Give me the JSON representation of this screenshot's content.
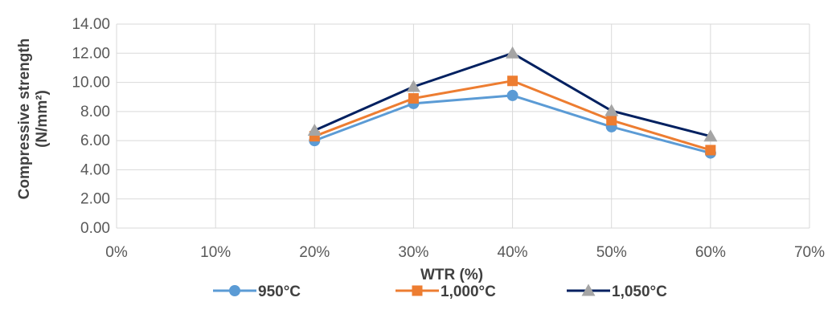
{
  "chart_data": {
    "type": "line",
    "title": "",
    "xlabel": "WTR (%)",
    "ylabel_line1": "Compressive strength",
    "ylabel_line2": "(N/mm²)",
    "x_ticks": [
      "0%",
      "10%",
      "20%",
      "30%",
      "40%",
      "50%",
      "60%",
      "70%"
    ],
    "x_range": [
      0,
      70
    ],
    "y_ticks": [
      "0.00",
      "2.00",
      "4.00",
      "6.00",
      "8.00",
      "10.00",
      "12.00",
      "14.00"
    ],
    "ylim": [
      0,
      14
    ],
    "grid": true,
    "legend_position": "bottom",
    "x": [
      20,
      30,
      40,
      50,
      60
    ],
    "series": [
      {
        "name": "950°C",
        "values": [
          6.0,
          8.55,
          9.1,
          6.95,
          5.15
        ],
        "color": "#5B9BD5",
        "marker": "circle",
        "line_color": "#5B9BD5"
      },
      {
        "name": "1,000°C",
        "values": [
          6.3,
          8.9,
          10.1,
          7.4,
          5.35
        ],
        "color": "#ED7D31",
        "marker": "square",
        "line_color": "#ED7D31"
      },
      {
        "name": "1,050°C",
        "values": [
          6.7,
          9.7,
          12.0,
          8.05,
          6.3
        ],
        "color": "#A5A5A5",
        "marker": "triangle",
        "line_color": "#002060"
      }
    ]
  }
}
